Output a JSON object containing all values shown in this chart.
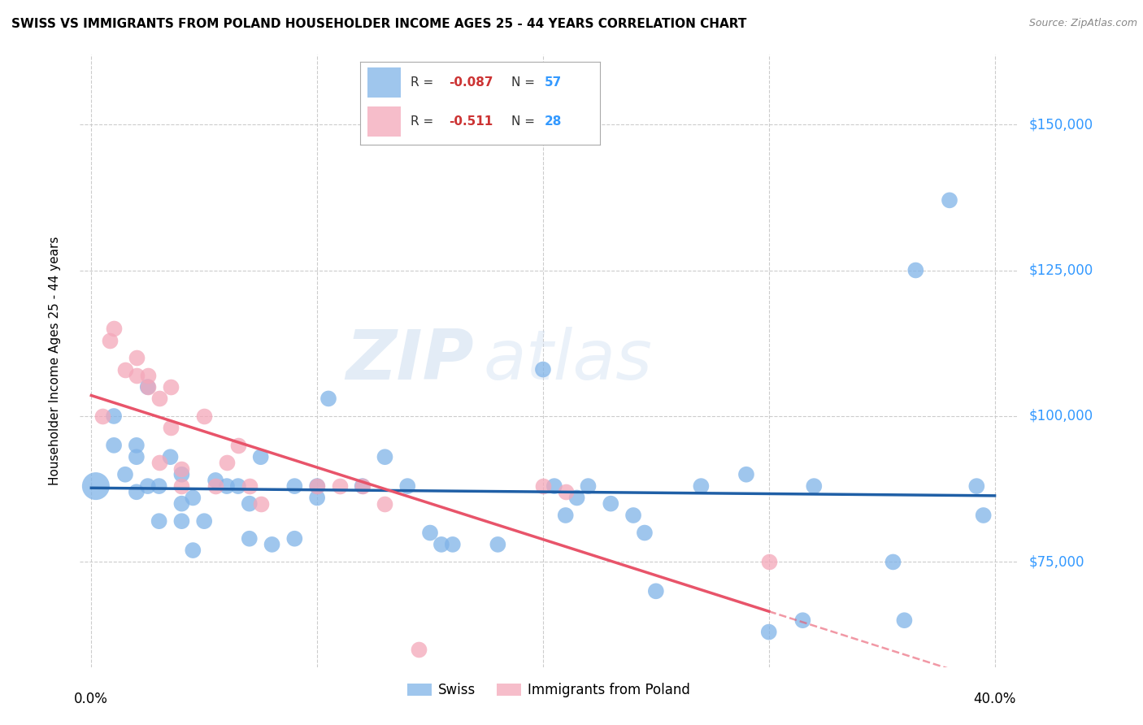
{
  "title": "SWISS VS IMMIGRANTS FROM POLAND HOUSEHOLDER INCOME AGES 25 - 44 YEARS CORRELATION CHART",
  "source": "Source: ZipAtlas.com",
  "ylabel": "Householder Income Ages 25 - 44 years",
  "xlim": [
    -0.005,
    0.41
  ],
  "ylim": [
    57000,
    162000
  ],
  "yticks": [
    75000,
    100000,
    125000,
    150000
  ],
  "ytick_labels": [
    "$75,000",
    "$100,000",
    "$125,000",
    "$150,000"
  ],
  "swiss_color": "#7fb3e8",
  "poland_color": "#f4a7b9",
  "swiss_line_color": "#1f5fa6",
  "poland_line_color": "#e8546a",
  "legend_swiss_R": "-0.087",
  "legend_swiss_N": "57",
  "legend_poland_R": "-0.511",
  "legend_poland_N": "28",
  "watermark_part1": "ZIP",
  "watermark_part2": "atlas",
  "swiss_x": [
    0.002,
    0.01,
    0.01,
    0.015,
    0.02,
    0.02,
    0.02,
    0.025,
    0.025,
    0.03,
    0.03,
    0.035,
    0.04,
    0.04,
    0.04,
    0.045,
    0.045,
    0.05,
    0.055,
    0.06,
    0.065,
    0.07,
    0.07,
    0.075,
    0.08,
    0.09,
    0.09,
    0.1,
    0.1,
    0.105,
    0.12,
    0.13,
    0.14,
    0.15,
    0.155,
    0.16,
    0.18,
    0.2,
    0.205,
    0.21,
    0.215,
    0.22,
    0.23,
    0.24,
    0.245,
    0.25,
    0.27,
    0.29,
    0.3,
    0.315,
    0.32,
    0.355,
    0.36,
    0.365,
    0.38,
    0.392,
    0.395
  ],
  "swiss_y": [
    88000,
    100000,
    95000,
    90000,
    87000,
    93000,
    95000,
    88000,
    105000,
    82000,
    88000,
    93000,
    82000,
    85000,
    90000,
    77000,
    86000,
    82000,
    89000,
    88000,
    88000,
    79000,
    85000,
    93000,
    78000,
    88000,
    79000,
    86000,
    88000,
    103000,
    88000,
    93000,
    88000,
    80000,
    78000,
    78000,
    78000,
    108000,
    88000,
    83000,
    86000,
    88000,
    85000,
    83000,
    80000,
    70000,
    88000,
    90000,
    63000,
    65000,
    88000,
    75000,
    65000,
    125000,
    137000,
    88000,
    83000
  ],
  "swiss_sizes": [
    600,
    200,
    200,
    200,
    200,
    200,
    200,
    200,
    200,
    200,
    200,
    200,
    200,
    200,
    200,
    200,
    200,
    200,
    200,
    200,
    200,
    200,
    200,
    200,
    200,
    200,
    200,
    200,
    200,
    200,
    200,
    200,
    200,
    200,
    200,
    200,
    200,
    200,
    200,
    200,
    200,
    200,
    200,
    200,
    200,
    200,
    200,
    200,
    200,
    200,
    200,
    200,
    200,
    200,
    200,
    200,
    200
  ],
  "poland_x": [
    0.005,
    0.008,
    0.01,
    0.015,
    0.02,
    0.02,
    0.025,
    0.025,
    0.03,
    0.03,
    0.035,
    0.035,
    0.04,
    0.04,
    0.05,
    0.055,
    0.06,
    0.065,
    0.07,
    0.075,
    0.1,
    0.11,
    0.12,
    0.13,
    0.145,
    0.2,
    0.21,
    0.3
  ],
  "poland_y": [
    100000,
    113000,
    115000,
    108000,
    110000,
    107000,
    105000,
    107000,
    103000,
    92000,
    98000,
    105000,
    91000,
    88000,
    100000,
    88000,
    92000,
    95000,
    88000,
    85000,
    88000,
    88000,
    88000,
    85000,
    60000,
    88000,
    87000,
    75000
  ]
}
